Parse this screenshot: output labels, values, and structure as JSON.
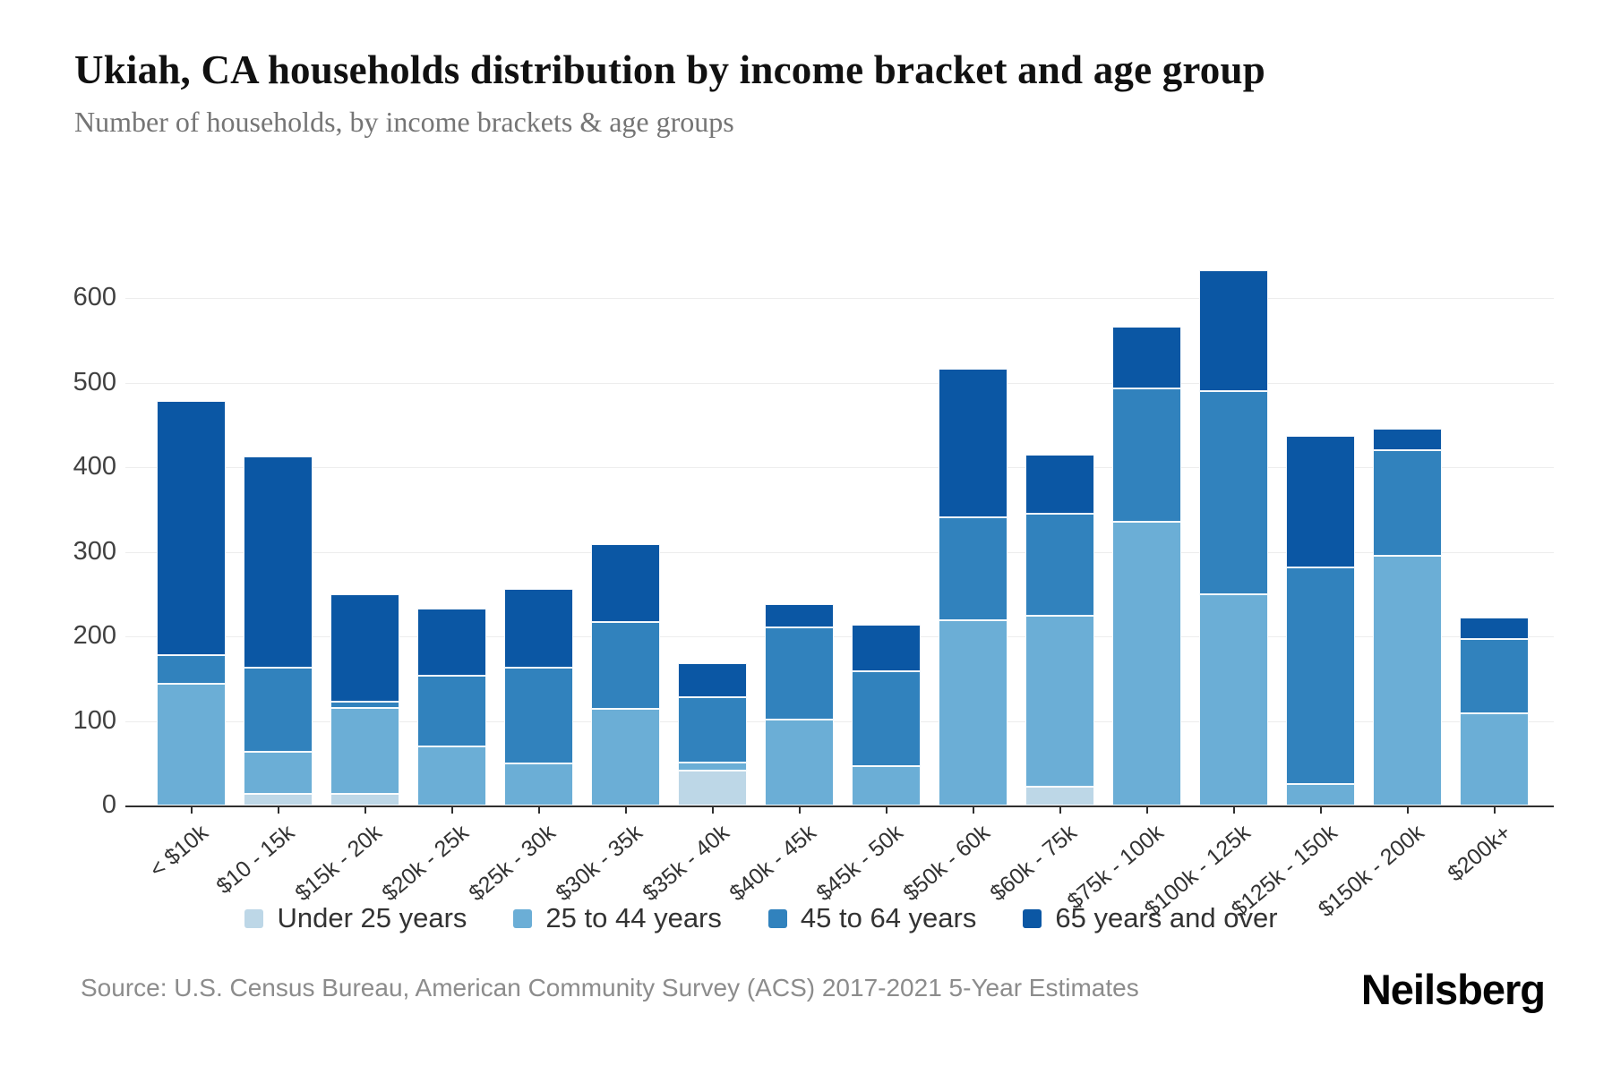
{
  "header": {
    "title": "Ukiah, CA households distribution by income bracket and age group",
    "subtitle": "Number of households, by income brackets & age groups"
  },
  "footer": {
    "source_text": "Source: U.S. Census Bureau, American Community Survey (ACS) 2017-2021 5-Year Estimates",
    "brand": "Neilsberg"
  },
  "colors": {
    "under_25": "#bdd7e7",
    "age_25_44": "#6baed6",
    "age_45_64": "#3182bd",
    "age_65_over": "#0b57a4",
    "gridline": "#ededed",
    "axis": "#2f2f2f"
  },
  "chart_data": {
    "type": "bar",
    "stacked": true,
    "title": "Ukiah, CA households distribution by income bracket and age group",
    "xlabel": "",
    "ylabel": "Number of households",
    "ylim": [
      0,
      600
    ],
    "y_ticks": [
      0,
      100,
      200,
      300,
      400,
      500,
      600
    ],
    "grid": "horizontal",
    "legend_position": "bottom",
    "categories": [
      "< $10k",
      "$10 - 15k",
      "$15k - 20k",
      "$20k - 25k",
      "$25k - 30k",
      "$30k - 35k",
      "$35k - 40k",
      "$40k - 45k",
      "$45k - 50k",
      "$50k - 60k",
      "$60k - 75k",
      "$75k - 100k",
      "$100k - 125k",
      "$125k - 150k",
      "$150k - 200k",
      "$200k+"
    ],
    "series": [
      {
        "name": "Under 25 years",
        "color": "#bdd7e7",
        "values": [
          0,
          14,
          14,
          0,
          0,
          0,
          41,
          0,
          0,
          0,
          22,
          0,
          0,
          0,
          0,
          0
        ]
      },
      {
        "name": "25 to 44 years",
        "color": "#6baed6",
        "values": [
          144,
          50,
          101,
          70,
          50,
          114,
          10,
          102,
          47,
          219,
          202,
          335,
          250,
          25,
          295,
          109
        ]
      },
      {
        "name": "45 to 64 years",
        "color": "#3182bd",
        "values": [
          34,
          99,
          8,
          83,
          113,
          103,
          77,
          109,
          112,
          122,
          121,
          158,
          240,
          257,
          125,
          88
        ]
      },
      {
        "name": "65 years and over",
        "color": "#0b57a4",
        "values": [
          300,
          250,
          127,
          80,
          93,
          92,
          40,
          27,
          55,
          175,
          70,
          73,
          143,
          155,
          25,
          25
        ]
      }
    ],
    "totals": [
      478,
      413,
      250,
      233,
      256,
      309,
      168,
      238,
      214,
      516,
      415,
      566,
      633,
      437,
      445,
      222
    ]
  }
}
